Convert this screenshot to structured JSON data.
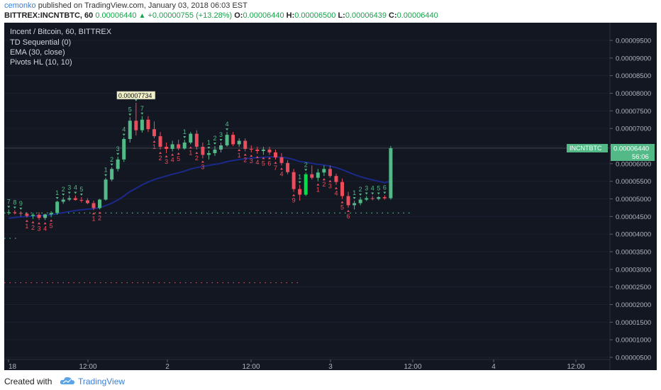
{
  "header": {
    "author": "cemonko",
    "published_text": " published on TradingView.com, January 03, 2018 06:03 EST",
    "symbol": "BITTREX:INCNTBTC, 60",
    "last": "0.00006440",
    "change": "+0.00000755 (+13.28%)",
    "open_label": "O:",
    "open": "0.00006440",
    "high_label": "H:",
    "high": "0.00006500",
    "low_label": "L:",
    "low": "0.00006439",
    "close_label": "C:",
    "close": "0.00006440"
  },
  "legend": {
    "title": "Incent / Bitcoin, 60, BITTREX",
    "studies": [
      "TD Sequential (0)",
      "EMA (30, close)",
      "Pivots HL (10, 10)"
    ]
  },
  "price_axis": {
    "ticks": [
      "0.00009500",
      "0.00009000",
      "0.00008500",
      "0.00008000",
      "0.00007500",
      "0.00007000",
      "0.00006500",
      "0.00006000",
      "0.00005500",
      "0.00005000",
      "0.00004500",
      "0.00004000",
      "0.00003500",
      "0.00003000",
      "0.00002500",
      "0.00002000",
      "0.00001500",
      "0.00001000",
      "0.00000500"
    ],
    "symbol_badge": "INCNTBTC",
    "price_badge": "0.00006440",
    "countdown": "56:06"
  },
  "time_axis": {
    "ticks": [
      "18",
      "12:00",
      "2",
      "12:00",
      "3",
      "12:00",
      "4",
      "12:00"
    ]
  },
  "annotations": {
    "pivot_high_label": "0.00007734"
  },
  "colors": {
    "background": "#131722",
    "up": "#53b987",
    "down": "#eb4d5c",
    "ema": "#1b2a8a",
    "td_up": "#53b987",
    "td_down": "#eb4d5c",
    "pivot_dots_green": "#53b987",
    "pivot_dots_red": "#eb4d5c"
  },
  "chart_data": {
    "type": "candlestick",
    "title": "Incent / Bitcoin, 60, BITTREX",
    "ylim": [
      5e-06,
      0.0001
    ],
    "candles": [
      {
        "o": 4.6e-05,
        "h": 4.7e-05,
        "l": 4.55e-05,
        "c": 4.62e-05
      },
      {
        "o": 4.62e-05,
        "h": 4.68e-05,
        "l": 4.56e-05,
        "c": 4.6e-05
      },
      {
        "o": 4.6e-05,
        "h": 4.65e-05,
        "l": 4.5e-05,
        "c": 4.58e-05
      },
      {
        "o": 4.58e-05,
        "h": 4.62e-05,
        "l": 4.47e-05,
        "c": 4.52e-05
      },
      {
        "o": 4.52e-05,
        "h": 4.6e-05,
        "l": 4.43e-05,
        "c": 4.55e-05
      },
      {
        "o": 4.55e-05,
        "h": 4.62e-05,
        "l": 4.4e-05,
        "c": 4.46e-05
      },
      {
        "o": 4.46e-05,
        "h": 4.58e-05,
        "l": 4.4e-05,
        "c": 4.56e-05
      },
      {
        "o": 4.56e-05,
        "h": 4.65e-05,
        "l": 4.48e-05,
        "c": 4.6e-05
      },
      {
        "o": 4.6e-05,
        "h": 4.95e-05,
        "l": 4.55e-05,
        "c": 4.92e-05
      },
      {
        "o": 4.92e-05,
        "h": 5.05e-05,
        "l": 4.86e-05,
        "c": 4.98e-05
      },
      {
        "o": 4.98e-05,
        "h": 5.1e-05,
        "l": 4.94e-05,
        "c": 5.02e-05
      },
      {
        "o": 5.02e-05,
        "h": 5.1e-05,
        "l": 4.95e-05,
        "c": 4.97e-05
      },
      {
        "o": 4.97e-05,
        "h": 5.05e-05,
        "l": 4.9e-05,
        "c": 4.96e-05
      },
      {
        "o": 4.96e-05,
        "h": 5.02e-05,
        "l": 4.85e-05,
        "c": 4.88e-05
      },
      {
        "o": 4.88e-05,
        "h": 4.95e-05,
        "l": 4.68e-05,
        "c": 4.74e-05
      },
      {
        "o": 4.74e-05,
        "h": 5e-05,
        "l": 4.7e-05,
        "c": 4.98e-05
      },
      {
        "o": 4.98e-05,
        "h": 5.6e-05,
        "l": 4.95e-05,
        "c": 5.55e-05
      },
      {
        "o": 5.55e-05,
        "h": 5.9e-05,
        "l": 5.5e-05,
        "c": 5.85e-05
      },
      {
        "o": 5.85e-05,
        "h": 6.2e-05,
        "l": 5.78e-05,
        "c": 6.12e-05
      },
      {
        "o": 6.12e-05,
        "h": 6.75e-05,
        "l": 6.05e-05,
        "c": 6.7e-05
      },
      {
        "o": 6.7e-05,
        "h": 7.32e-05,
        "l": 6.6e-05,
        "c": 7.22e-05
      },
      {
        "o": 7.22e-05,
        "h": 7.73e-05,
        "l": 6.8e-05,
        "c": 6.95e-05
      },
      {
        "o": 6.95e-05,
        "h": 7.35e-05,
        "l": 6.88e-05,
        "c": 7.25e-05
      },
      {
        "o": 7.25e-05,
        "h": 7.35e-05,
        "l": 6.9e-05,
        "c": 6.98e-05
      },
      {
        "o": 6.98e-05,
        "h": 7.2e-05,
        "l": 6.72e-05,
        "c": 6.78e-05
      },
      {
        "o": 6.78e-05,
        "h": 6.9e-05,
        "l": 6.4e-05,
        "c": 6.48e-05
      },
      {
        "o": 6.48e-05,
        "h": 6.6e-05,
        "l": 6.3e-05,
        "c": 6.42e-05
      },
      {
        "o": 6.42e-05,
        "h": 6.65e-05,
        "l": 6.35e-05,
        "c": 6.55e-05
      },
      {
        "o": 6.55e-05,
        "h": 6.68e-05,
        "l": 6.38e-05,
        "c": 6.43e-05
      },
      {
        "o": 6.43e-05,
        "h": 6.68e-05,
        "l": 6.4e-05,
        "c": 6.6e-05
      },
      {
        "o": 6.6e-05,
        "h": 6.9e-05,
        "l": 6.55e-05,
        "c": 6.85e-05
      },
      {
        "o": 6.85e-05,
        "h": 6.95e-05,
        "l": 6.4e-05,
        "c": 6.48e-05
      },
      {
        "o": 6.48e-05,
        "h": 6.6e-05,
        "l": 6.15e-05,
        "c": 6.25e-05
      },
      {
        "o": 6.25e-05,
        "h": 6.38e-05,
        "l": 6.12e-05,
        "c": 6.3e-05
      },
      {
        "o": 6.3e-05,
        "h": 6.5e-05,
        "l": 6.22e-05,
        "c": 6.4e-05
      },
      {
        "o": 6.4e-05,
        "h": 6.6e-05,
        "l": 6.32e-05,
        "c": 6.52e-05
      },
      {
        "o": 6.52e-05,
        "h": 6.9e-05,
        "l": 6.48e-05,
        "c": 6.82e-05
      },
      {
        "o": 6.82e-05,
        "h": 6.9e-05,
        "l": 6.5e-05,
        "c": 6.55e-05
      },
      {
        "o": 6.55e-05,
        "h": 6.72e-05,
        "l": 6.48e-05,
        "c": 6.65e-05
      },
      {
        "o": 6.65e-05,
        "h": 6.72e-05,
        "l": 6.35e-05,
        "c": 6.42e-05
      },
      {
        "o": 6.42e-05,
        "h": 6.52e-05,
        "l": 6.32e-05,
        "c": 6.4e-05
      },
      {
        "o": 6.4e-05,
        "h": 6.48e-05,
        "l": 6.28e-05,
        "c": 6.36e-05
      },
      {
        "o": 6.36e-05,
        "h": 6.48e-05,
        "l": 6.25e-05,
        "c": 6.4e-05
      },
      {
        "o": 6.4e-05,
        "h": 6.48e-05,
        "l": 6.25e-05,
        "c": 6.32e-05
      },
      {
        "o": 6.32e-05,
        "h": 6.4e-05,
        "l": 6.12e-05,
        "c": 6.18e-05
      },
      {
        "o": 6.18e-05,
        "h": 6.3e-05,
        "l": 5.95e-05,
        "c": 6.02e-05
      },
      {
        "o": 6.02e-05,
        "h": 6.1e-05,
        "l": 5.7e-05,
        "c": 5.76e-05
      },
      {
        "o": 5.76e-05,
        "h": 5.85e-05,
        "l": 5.2e-05,
        "c": 5.28e-05
      },
      {
        "o": 5.28e-05,
        "h": 5.4e-05,
        "l": 4.95e-05,
        "c": 5.12e-05
      },
      {
        "o": 5.12e-05,
        "h": 5.75e-05,
        "l": 5.08e-05,
        "c": 5.7e-05
      },
      {
        "o": 5.7e-05,
        "h": 5.95e-05,
        "l": 5.55e-05,
        "c": 5.6e-05
      },
      {
        "o": 5.6e-05,
        "h": 5.85e-05,
        "l": 5.5e-05,
        "c": 5.75e-05
      },
      {
        "o": 5.75e-05,
        "h": 5.95e-05,
        "l": 5.65e-05,
        "c": 5.85e-05
      },
      {
        "o": 5.85e-05,
        "h": 5.95e-05,
        "l": 5.6e-05,
        "c": 5.65e-05
      },
      {
        "o": 5.65e-05,
        "h": 5.72e-05,
        "l": 5.4e-05,
        "c": 5.48e-05
      },
      {
        "o": 5.48e-05,
        "h": 5.58e-05,
        "l": 5e-05,
        "c": 5.08e-05
      },
      {
        "o": 5.08e-05,
        "h": 5.2e-05,
        "l": 4.75e-05,
        "c": 4.82e-05
      },
      {
        "o": 4.82e-05,
        "h": 4.95e-05,
        "l": 4.7e-05,
        "c": 4.88e-05
      },
      {
        "o": 4.88e-05,
        "h": 5.05e-05,
        "l": 4.82e-05,
        "c": 4.98e-05
      },
      {
        "o": 4.98e-05,
        "h": 5.08e-05,
        "l": 4.94e-05,
        "c": 5.02e-05
      },
      {
        "o": 5.02e-05,
        "h": 5.08e-05,
        "l": 4.96e-05,
        "c": 5e-05
      },
      {
        "o": 5e-05,
        "h": 5.08e-05,
        "l": 4.96e-05,
        "c": 5.05e-05
      },
      {
        "o": 5.05e-05,
        "h": 5.1e-05,
        "l": 4.98e-05,
        "c": 5.02e-05
      },
      {
        "o": 5.02e-05,
        "h": 6.5e-05,
        "l": 4.98e-05,
        "c": 6.44e-05
      }
    ],
    "ema": [
      4.45e-05,
      4.47e-05,
      4.49e-05,
      4.5e-05,
      4.51e-05,
      4.52e-05,
      4.53e-05,
      4.55e-05,
      4.58e-05,
      4.61e-05,
      4.64e-05,
      4.67e-05,
      4.69e-05,
      4.71e-05,
      4.72e-05,
      4.75e-05,
      4.81e-05,
      4.88e-05,
      4.97e-05,
      5.08e-05,
      5.21e-05,
      5.3e-05,
      5.4e-05,
      5.48e-05,
      5.55e-05,
      5.6e-05,
      5.65e-05,
      5.7e-05,
      5.74e-05,
      5.79e-05,
      5.85e-05,
      5.89e-05,
      5.92e-05,
      5.95e-05,
      5.98e-05,
      6.01e-05,
      6.06e-05,
      6.09e-05,
      6.12e-05,
      6.14e-05,
      6.16e-05,
      6.17e-05,
      6.18e-05,
      6.19e-05,
      6.19e-05,
      6.18e-05,
      6.16e-05,
      6.12e-05,
      6.06e-05,
      6.04e-05,
      6.01e-05,
      5.98e-05,
      5.96e-05,
      5.93e-05,
      5.89e-05,
      5.83e-05,
      5.76e-05,
      5.69e-05,
      5.63e-05,
      5.58e-05,
      5.54e-05,
      5.5e-05,
      5.46e-05,
      5.51e-05
    ],
    "pivot_support": 4.6e-05,
    "pivot_low_line": 3.88e-05,
    "pivot_red_line": 2.62e-05,
    "td_counts": [
      {
        "i": 0,
        "t": "7",
        "up": true
      },
      {
        "i": 1,
        "t": "8",
        "up": true
      },
      {
        "i": 2,
        "t": "9",
        "up": true
      },
      {
        "i": 3,
        "t": "1",
        "up": false
      },
      {
        "i": 4,
        "t": "2",
        "up": false
      },
      {
        "i": 5,
        "t": "3",
        "up": false
      },
      {
        "i": 6,
        "t": "4",
        "up": false
      },
      {
        "i": 7,
        "t": "5",
        "up": false
      },
      {
        "i": 8,
        "t": "1",
        "up": true
      },
      {
        "i": 9,
        "t": "2",
        "up": true
      },
      {
        "i": 10,
        "t": "3",
        "up": true
      },
      {
        "i": 11,
        "t": "4",
        "up": true
      },
      {
        "i": 12,
        "t": "5",
        "up": true
      },
      {
        "i": 14,
        "t": "1",
        "up": false
      },
      {
        "i": 15,
        "t": "2",
        "up": false
      },
      {
        "i": 16,
        "t": "1",
        "up": true
      },
      {
        "i": 17,
        "t": "2",
        "up": true
      },
      {
        "i": 18,
        "t": "3",
        "up": true
      },
      {
        "i": 19,
        "t": "4",
        "up": true
      },
      {
        "i": 20,
        "t": "5",
        "up": true
      },
      {
        "i": 21,
        "t": "6",
        "up": true
      },
      {
        "i": 22,
        "t": "7",
        "up": true
      },
      {
        "i": 24,
        "t": "1",
        "up": false
      },
      {
        "i": 25,
        "t": "2",
        "up": false
      },
      {
        "i": 26,
        "t": "3",
        "up": false
      },
      {
        "i": 27,
        "t": "4",
        "up": false
      },
      {
        "i": 28,
        "t": "5",
        "up": false
      },
      {
        "i": 29,
        "t": "1",
        "up": true
      },
      {
        "i": 30,
        "t": "1",
        "up": false
      },
      {
        "i": 31,
        "t": "2",
        "up": false
      },
      {
        "i": 32,
        "t": "3",
        "up": false
      },
      {
        "i": 33,
        "t": "1",
        "up": true
      },
      {
        "i": 34,
        "t": "2",
        "up": true
      },
      {
        "i": 35,
        "t": "3",
        "up": true
      },
      {
        "i": 36,
        "t": "4",
        "up": true
      },
      {
        "i": 38,
        "t": "1",
        "up": false
      },
      {
        "i": 39,
        "t": "2",
        "up": false
      },
      {
        "i": 40,
        "t": "3",
        "up": false
      },
      {
        "i": 41,
        "t": "4",
        "up": false
      },
      {
        "i": 42,
        "t": "5",
        "up": false
      },
      {
        "i": 43,
        "t": "6",
        "up": false
      },
      {
        "i": 44,
        "t": "7",
        "up": false
      },
      {
        "i": 45,
        "t": "4",
        "up": false
      },
      {
        "i": 47,
        "t": "9",
        "up": false
      },
      {
        "i": 48,
        "t": "1",
        "up": true
      },
      {
        "i": 49,
        "t": "2",
        "up": true
      },
      {
        "i": 51,
        "t": "1",
        "up": false
      },
      {
        "i": 52,
        "t": "2",
        "up": false
      },
      {
        "i": 53,
        "t": "3",
        "up": false
      },
      {
        "i": 54,
        "t": "4",
        "up": false
      },
      {
        "i": 55,
        "t": "5",
        "up": false
      },
      {
        "i": 56,
        "t": "6",
        "up": false
      },
      {
        "i": 57,
        "t": "1",
        "up": true
      },
      {
        "i": 58,
        "t": "2",
        "up": true
      },
      {
        "i": 59,
        "t": "3",
        "up": true
      },
      {
        "i": 60,
        "t": "4",
        "up": true
      },
      {
        "i": 61,
        "t": "5",
        "up": true
      },
      {
        "i": 62,
        "t": "6",
        "up": true
      }
    ]
  },
  "footer": {
    "created_with": "Created with",
    "brand": "TradingView"
  }
}
